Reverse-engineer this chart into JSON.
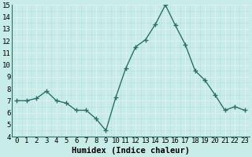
{
  "x": [
    0,
    1,
    2,
    3,
    4,
    5,
    6,
    7,
    8,
    9,
    10,
    11,
    12,
    13,
    14,
    15,
    16,
    17,
    18,
    19,
    20,
    21,
    22,
    23
  ],
  "y": [
    7.0,
    7.0,
    7.2,
    7.8,
    7.0,
    6.8,
    6.2,
    6.2,
    5.5,
    4.5,
    7.3,
    9.7,
    11.5,
    12.1,
    13.4,
    15.0,
    13.3,
    11.7,
    9.5,
    8.7,
    7.5,
    6.2,
    6.5,
    6.2
  ],
  "xlabel": "Humidex (Indice chaleur)",
  "ylim": [
    4,
    15
  ],
  "xlim_min": -0.5,
  "xlim_max": 23.5,
  "yticks": [
    4,
    5,
    6,
    7,
    8,
    9,
    10,
    11,
    12,
    13,
    14,
    15
  ],
  "xticks": [
    0,
    1,
    2,
    3,
    4,
    5,
    6,
    7,
    8,
    9,
    10,
    11,
    12,
    13,
    14,
    15,
    16,
    17,
    18,
    19,
    20,
    21,
    22,
    23
  ],
  "xtick_labels": [
    "0",
    "1",
    "2",
    "3",
    "4",
    "5",
    "6",
    "7",
    "8",
    "9",
    "10",
    "11",
    "12",
    "13",
    "14",
    "15",
    "16",
    "17",
    "18",
    "19",
    "20",
    "21",
    "22",
    "23"
  ],
  "line_color": "#2d706a",
  "marker_color": "#2d706a",
  "bg_color": "#c8ece8",
  "grid_color_light": "#b8dcd8",
  "grid_color_dark": "#a0c8c4",
  "xlabel_fontsize": 7.5,
  "tick_fontsize": 6.5,
  "marker_size": 2.5,
  "line_width": 1.0
}
